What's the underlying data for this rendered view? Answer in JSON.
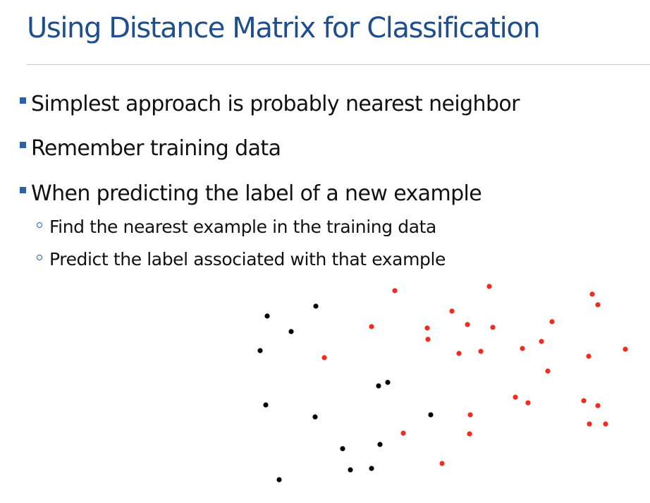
{
  "slide": {
    "title": "Using Distance Matrix for Classification",
    "bullets": [
      "Simplest approach is probably nearest neighbor",
      "Remember training data",
      "When predicting the label of a new example"
    ],
    "sub_bullets": [
      "Find the nearest example in the training data",
      "Predict the label associated with that example"
    ],
    "accent_color": "#1f4e8c",
    "marker_color": "#2f5fa4"
  },
  "chart_data": {
    "type": "scatter",
    "axes_visible": false,
    "grid": false,
    "series": [
      {
        "color": "#000000",
        "points": [
          [
            379,
            448
          ],
          [
            448,
            434
          ],
          [
            413,
            470
          ],
          [
            369,
            497
          ],
          [
            537,
            547
          ],
          [
            550,
            542
          ],
          [
            377,
            574
          ],
          [
            447,
            591
          ],
          [
            611,
            588
          ],
          [
            539,
            630
          ],
          [
            486,
            636
          ],
          [
            497,
            666
          ],
          [
            527,
            664
          ],
          [
            396,
            680
          ]
        ]
      },
      {
        "color": "#ef2b22",
        "points": [
          [
            560,
            412
          ],
          [
            694,
            406
          ],
          [
            840,
            417
          ],
          [
            848,
            432
          ],
          [
            641,
            441
          ],
          [
            663,
            460
          ],
          [
            527,
            463
          ],
          [
            606,
            465
          ],
          [
            699,
            464
          ],
          [
            783,
            456
          ],
          [
            607,
            481
          ],
          [
            768,
            484
          ],
          [
            651,
            501
          ],
          [
            682,
            498
          ],
          [
            741,
            494
          ],
          [
            887,
            495
          ],
          [
            460,
            507
          ],
          [
            835,
            505
          ],
          [
            777,
            526
          ],
          [
            731,
            563
          ],
          [
            749,
            571
          ],
          [
            828,
            568
          ],
          [
            848,
            575
          ],
          [
            667,
            588
          ],
          [
            572,
            614
          ],
          [
            666,
            615
          ],
          [
            836,
            601
          ],
          [
            859,
            601
          ],
          [
            627,
            657
          ]
        ]
      }
    ]
  }
}
